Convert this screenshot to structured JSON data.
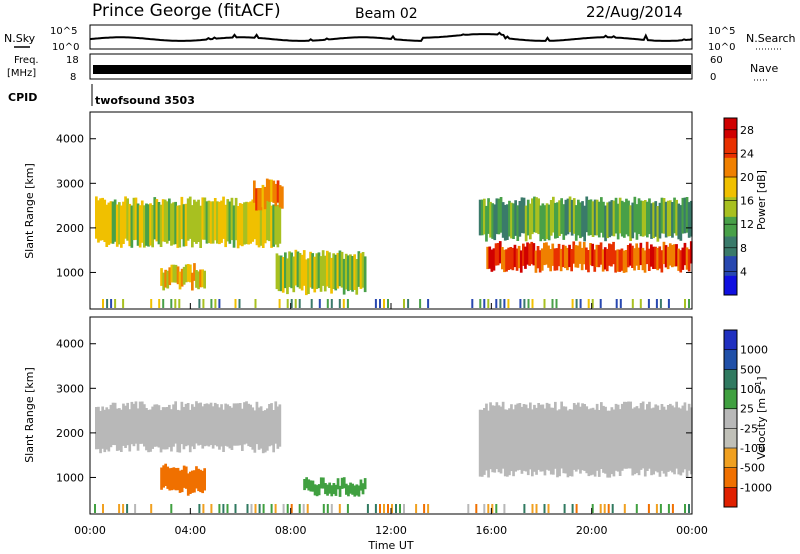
{
  "header": {
    "station": "Prince George (fitACF)",
    "beam": "Beam 02",
    "date": "22/Aug/2014"
  },
  "top_panels": {
    "nsky_label": "N.Sky",
    "nsky_ticks": [
      "10^5",
      "10^0"
    ],
    "nsearch_label": "N.Search",
    "nsearch_ticks": [
      "10^5",
      "10^0"
    ],
    "freq_label_1": "Freq.",
    "freq_label_2": "[MHz]",
    "freq_ticks": [
      "18",
      "8"
    ],
    "nave_label": "Nave",
    "nave_ticks": [
      "60",
      "0"
    ],
    "cpid_label": "CPID",
    "cpid_value": "twofsound 3503"
  },
  "colors": {
    "power_scale": [
      "#1010e0",
      "#2848b0",
      "#3a7a6a",
      "#48a048",
      "#a8c020",
      "#f0c000",
      "#f08000",
      "#e83000",
      "#d00000"
    ],
    "velocity_scale": [
      "#2030c0",
      "#2050a8",
      "#307a60",
      "#40a040",
      "#b8b8b8",
      "#c0c0b8",
      "#f0a020",
      "#f07000",
      "#e02000"
    ]
  },
  "chart_data": [
    {
      "type": "heatmap",
      "panel": "power",
      "ylabel": "Slant Range [km]",
      "ylim": [
        180,
        4600
      ],
      "y_ticks": [
        "4000",
        "3000",
        "2000",
        "1000"
      ],
      "xlabel": "Time UT",
      "x_ticks": [
        "00:00",
        "04:00",
        "08:00",
        "12:00",
        "16:00",
        "20:00",
        "00:00"
      ],
      "colorbar": {
        "label": "Power [dB]",
        "ticks": [
          "28",
          "24",
          "20",
          "16",
          "12",
          "8",
          "4"
        ],
        "range": [
          0,
          30
        ]
      },
      "features": [
        {
          "hour_start": 0.2,
          "hour_end": 7.6,
          "range_start_km": 1650,
          "range_end_km": 2600,
          "power_db": 16
        },
        {
          "hour_start": 6.5,
          "hour_end": 7.7,
          "range_start_km": 2500,
          "range_end_km": 3000,
          "power_db": 22
        },
        {
          "hour_start": 2.8,
          "hour_end": 4.6,
          "range_start_km": 700,
          "range_end_km": 1100,
          "power_db": 18
        },
        {
          "hour_start": 7.4,
          "hour_end": 11.0,
          "range_start_km": 600,
          "range_end_km": 1400,
          "power_db": 14
        },
        {
          "hour_start": 15.8,
          "hour_end": 24.0,
          "range_start_km": 1100,
          "range_end_km": 1600,
          "power_db": 24
        },
        {
          "hour_start": 15.5,
          "hour_end": 24.0,
          "range_start_km": 1800,
          "range_end_km": 2600,
          "power_db": 12
        }
      ],
      "data_gap_hours": [
        13.8,
        15.0
      ]
    },
    {
      "type": "heatmap",
      "panel": "velocity",
      "ylabel": "Slant Range [km]",
      "ylim": [
        180,
        4600
      ],
      "y_ticks": [
        "4000",
        "3000",
        "2000",
        "1000"
      ],
      "xlabel": "Time UT",
      "x_ticks": [
        "00:00",
        "04:00",
        "08:00",
        "12:00",
        "16:00",
        "20:00",
        "00:00"
      ],
      "colorbar": {
        "label": "Velocity [m s^-1]",
        "ticks": [
          "1000",
          "500",
          "100",
          "25",
          "-25",
          "-100",
          "-500",
          "-1000"
        ]
      },
      "features": [
        {
          "hour_start": 0.2,
          "hour_end": 7.6,
          "range_start_km": 1650,
          "range_end_km": 2600,
          "velocity": 0
        },
        {
          "hour_start": 2.8,
          "hour_end": 4.6,
          "range_start_km": 700,
          "range_end_km": 1200,
          "velocity": -300
        },
        {
          "hour_start": 8.5,
          "hour_end": 11.0,
          "range_start_km": 650,
          "range_end_km": 900,
          "velocity": 80
        },
        {
          "hour_start": 15.5,
          "hour_end": 24.0,
          "range_start_km": 1100,
          "range_end_km": 2600,
          "velocity": 0
        }
      ],
      "data_gap_hours": [
        13.8,
        15.0
      ]
    }
  ]
}
